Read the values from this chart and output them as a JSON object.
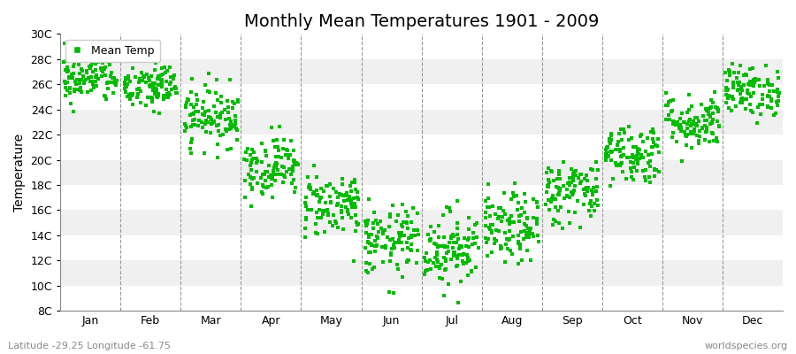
{
  "title": "Monthly Mean Temperatures 1901 - 2009",
  "ylabel": "Temperature",
  "xlabel_bottom_left": "Latitude -29.25 Longitude -61.75",
  "xlabel_bottom_right": "worldspecies.org",
  "legend_label": "Mean Temp",
  "months": [
    "Jan",
    "Feb",
    "Mar",
    "Apr",
    "May",
    "Jun",
    "Jul",
    "Aug",
    "Sep",
    "Oct",
    "Nov",
    "Dec"
  ],
  "n_years": 109,
  "ylim": [
    8,
    30
  ],
  "yticks": [
    8,
    10,
    12,
    14,
    16,
    18,
    20,
    22,
    24,
    26,
    28,
    30
  ],
  "ytick_labels": [
    "8C",
    "10C",
    "12C",
    "14C",
    "16C",
    "18C",
    "20C",
    "22C",
    "24C",
    "26C",
    "28C",
    "30C"
  ],
  "monthly_means": [
    26.5,
    25.8,
    23.5,
    19.5,
    16.5,
    13.5,
    13.0,
    14.5,
    17.5,
    20.5,
    23.0,
    25.5
  ],
  "monthly_stds": [
    1.0,
    1.0,
    1.2,
    1.2,
    1.3,
    1.4,
    1.5,
    1.4,
    1.3,
    1.2,
    1.1,
    1.0
  ],
  "dot_color": "#00bb00",
  "marker": "s",
  "marker_size": 2.5,
  "bg_color": "#ffffff",
  "band_color_odd": "#f3f3f3",
  "hband_colors": [
    "#ffffff",
    "#f0f0f0"
  ],
  "grid_color": "#999999",
  "title_fontsize": 14,
  "axis_label_fontsize": 10,
  "tick_fontsize": 9,
  "legend_fontsize": 9
}
